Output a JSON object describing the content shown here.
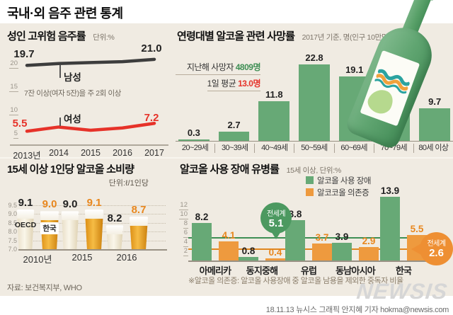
{
  "page": {
    "title": "국내·외 음주 관련 통계",
    "source": "자료: 보건복지부, WHO",
    "credit": "18.11.13 뉴시스 그래픽 안지혜 기자 hokma@newsis.com",
    "logo_text": "NEWSIS"
  },
  "colors": {
    "background": "#f0ebe2",
    "bar_green": "#67a976",
    "bar_orange": "#ee9a3e",
    "line_male": "#3d3d3d",
    "line_female": "#e63229",
    "ref_green": "#3f8f55",
    "ref_orange": "#e0861f"
  },
  "icons": {
    "bottle": "soju-bottle-illustration"
  },
  "chart_data": [
    {
      "id": "adult_high_risk_drinking_rate",
      "type": "line",
      "title": "성인 고위험 음주률",
      "unit": "단위:%",
      "note": "7잔 이상(여자 5잔)을 주 2회 이상",
      "x": [
        "2013년",
        "2014",
        "2015",
        "2016",
        "2017"
      ],
      "yticks": [
        20,
        15,
        10,
        5
      ],
      "ylim": [
        2.5,
        23
      ],
      "grid": false,
      "series": [
        {
          "name": "남성",
          "color": "#3d3d3d",
          "values": [
            19.7,
            20.1,
            20.3,
            20.5,
            21.0
          ],
          "labeled_points": {
            "2013": 19.7,
            "2017": 21.0
          }
        },
        {
          "name": "여성",
          "color": "#e63229",
          "values": [
            5.5,
            6.4,
            5.7,
            6.2,
            7.2
          ],
          "labeled_points": {
            "2013": 5.5,
            "2017": 7.2
          }
        }
      ]
    },
    {
      "id": "alcohol_death_rate_by_age",
      "type": "bar",
      "title": "연령대별 알코올 관련 사망률",
      "subtitle": "2017년 기준, 명(인구 10만명당)",
      "annotation": [
        {
          "text": "지난해 사망자 ",
          "value": "4809명",
          "value_color": "#3f8f55"
        },
        {
          "text": "1일 평균 ",
          "value": "13.0명",
          "value_color": "#e63229"
        }
      ],
      "categories": [
        "20~29세",
        "30~39세",
        "40~49세",
        "50~59세",
        "60~69세",
        "70~79세",
        "80세 이상"
      ],
      "values": [
        0.3,
        2.7,
        11.8,
        22.8,
        19.1,
        14.8,
        9.7
      ],
      "bar_color": "#67a976"
    },
    {
      "id": "alcohol_consumption_per_capita_15plus",
      "type": "bar",
      "title": "15세 이상 1인당 알코올 소비량",
      "unit": "단위:ℓ/1인당",
      "yticks": [
        9.5,
        9.0,
        8.5,
        8.0,
        7.5,
        7.0
      ],
      "ylim": [
        7.0,
        9.5
      ],
      "grid": true,
      "categories": [
        "2010년",
        "2015",
        "2016"
      ],
      "series": [
        {
          "name": "OECD",
          "values": [
            9.1,
            9.0,
            8.2
          ]
        },
        {
          "name": "한국",
          "values": [
            9.0,
            9.1,
            8.7
          ]
        }
      ]
    },
    {
      "id": "alcohol_use_disorder_prevalence",
      "type": "bar",
      "title": "알코올 사용 장애 유병률",
      "subtitle": "15세 이상, 단위:%",
      "legend": [
        {
          "label": "알코올 사용 장애",
          "color": "#67a976"
        },
        {
          "label": "알코코올 의존증",
          "color": "#ee9a3e"
        }
      ],
      "legend_position": "top-right",
      "yticks": [
        12,
        10,
        8,
        6,
        4,
        2
      ],
      "categories": [
        "아메리카",
        "동지중해",
        "유럽",
        "동남아시아",
        "한국"
      ],
      "series": [
        {
          "name": "알코올 사용 장애",
          "color": "#67a976",
          "values": [
            8.2,
            0.8,
            8.8,
            3.9,
            13.9
          ]
        },
        {
          "name": "알코코올 의존증",
          "color": "#ee9a3e",
          "values": [
            4.1,
            0.4,
            3.7,
            2.9,
            5.5
          ]
        }
      ],
      "reference_lines": [
        {
          "label": "전세계",
          "value": 5.1,
          "color": "#3f8f55"
        },
        {
          "label": "전세계",
          "value": 2.6,
          "color": "#e0861f"
        }
      ],
      "footnote": "※알코올 의존증: 알코올 사용장애 중 알코올 남용을 제외한 중독자 비율"
    }
  ]
}
